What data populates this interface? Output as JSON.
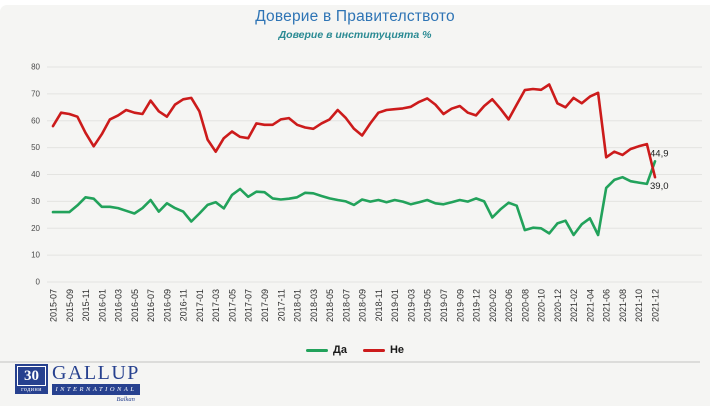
{
  "window": {
    "background": "#ffffff",
    "card_background": "#f5f5f3"
  },
  "header": {
    "title": "Доверие в Правителството",
    "subtitle": "Доверие в институцията %",
    "title_color": "#2e74b5",
    "subtitle_color": "#2a8a93"
  },
  "legend": {
    "items": [
      {
        "label": "Да",
        "color": "#22a25b"
      },
      {
        "label": "Не",
        "color": "#cc1b1b"
      }
    ]
  },
  "footer": {
    "logo": {
      "number": "30",
      "caption": "години",
      "brand": "GALLUP",
      "brand_sub": "INTERNATIONAL",
      "region": "Balkan",
      "color": "#27418f"
    }
  },
  "chart_data": {
    "type": "line",
    "title": "Доверие в Правителството",
    "subtitle": "Доверие в институцията %",
    "ylim": [
      0,
      80
    ],
    "y_ticks": [
      0,
      10,
      20,
      30,
      40,
      50,
      60,
      70,
      80
    ],
    "grid": "horizontal",
    "legend_position": "bottom-center",
    "note": "Monthly survey points; x-axis labels are shown on every second point",
    "label_every_n_points": 2,
    "x_labels": [
      "2015-07",
      "2015-09",
      "2015-11",
      "2016-01",
      "2016-03",
      "2016-05",
      "2016-07",
      "2016-09",
      "2016-11",
      "2017-01",
      "2017-03",
      "2017-05",
      "2017-07",
      "2017-09",
      "2017-11",
      "2018-01",
      "2018-03",
      "2018-05",
      "2018-07",
      "2018-09",
      "2018-11",
      "2019-01",
      "2019-03",
      "2019-05",
      "2019-07",
      "2019-09",
      "2019-12",
      "2020-02",
      "2020-06",
      "2020-08",
      "2020-10",
      "2020-12",
      "2021-02",
      "2021-04",
      "2021-06",
      "2021-08",
      "2021-10",
      "2021-12"
    ],
    "series": [
      {
        "name": "Да",
        "color": "#22a25b",
        "end_label": "44,9",
        "values": [
          26,
          26,
          26,
          28.5,
          31.5,
          31,
          28,
          28,
          27.5,
          26.5,
          25.5,
          27.5,
          30.5,
          26.2,
          29.3,
          27.5,
          26.2,
          22.5,
          25.5,
          28.7,
          29.7,
          27.4,
          32.4,
          34.6,
          31.7,
          33.6,
          33.4,
          31.1,
          30.7,
          31,
          31.5,
          33.2,
          33,
          32,
          31.1,
          30.5,
          30,
          28.7,
          30.7,
          29.9,
          30.5,
          29.7,
          30.5,
          29.9,
          28.9,
          29.7,
          30.5,
          29.3,
          28.9,
          29.7,
          30.5,
          29.9,
          31.1,
          30,
          24,
          27,
          29.5,
          28.4,
          19.3,
          20.2,
          20,
          18.1,
          21.8,
          22.8,
          17.5,
          21.5,
          23.7,
          17.5,
          35,
          38,
          39,
          37.5,
          37,
          36.5,
          44.9
        ]
      },
      {
        "name": "Не",
        "color": "#cc1b1b",
        "end_label": "39,0",
        "values": [
          58,
          63,
          62.5,
          61.5,
          55.5,
          50.5,
          55,
          60.5,
          62,
          64,
          63,
          62.5,
          67.5,
          63.5,
          61.5,
          66,
          68,
          68.5,
          63.5,
          53,
          48.5,
          53.5,
          56,
          54,
          53.5,
          59,
          58.5,
          58.5,
          60.5,
          61,
          58.5,
          57.5,
          57,
          59,
          60.5,
          64,
          61,
          57,
          54.5,
          59,
          63,
          64,
          64.3,
          64.6,
          65.2,
          67,
          68.3,
          66,
          62.5,
          64.5,
          65.5,
          63,
          62,
          65.5,
          68,
          64.5,
          60.5,
          66,
          71.4,
          71.8,
          71.5,
          73.5,
          66.5,
          65,
          68.5,
          66.5,
          69,
          70.4,
          46.4,
          48.5,
          47.3,
          49.5,
          50.5,
          51.3,
          39
        ]
      }
    ]
  }
}
